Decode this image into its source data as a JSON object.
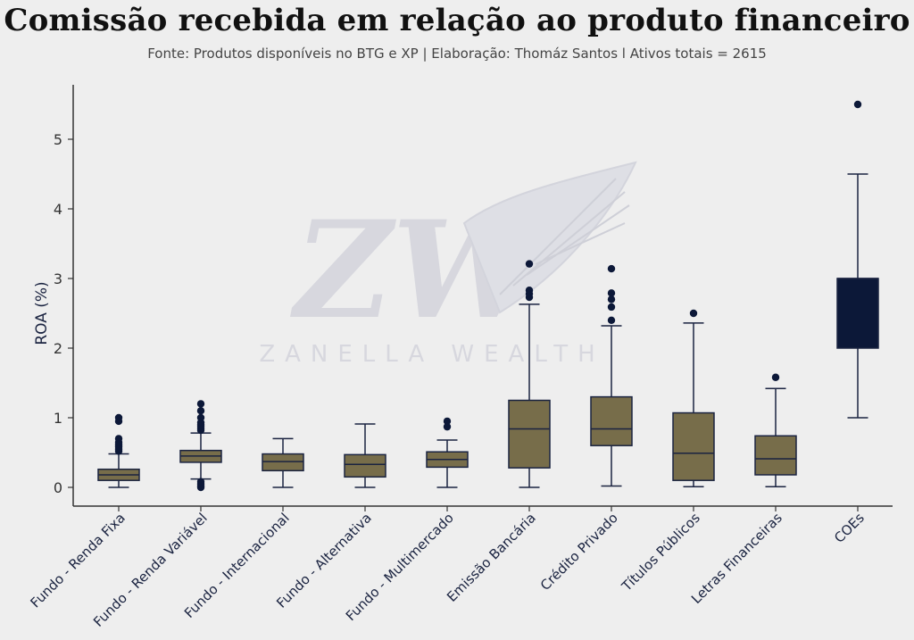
{
  "colors": {
    "background": "#eeeeee",
    "box_fill": "#776d4a",
    "box_edge": "#1a2340",
    "highlight_fill": "#0c1838",
    "outlier": "#0c1838",
    "axis": "#333333",
    "watermark": "#d3d4dc"
  },
  "watermark": {
    "logo_letters": "ZW",
    "text": "ZANELLA WEALTH"
  },
  "chart_data": {
    "type": "box",
    "title": "Comissão recebida em relação ao produto financeiro",
    "subtitle": "Fonte: Produtos disponíveis no BTG e XP | Elaboração: Thomáz Santos l Ativos totais = 2615",
    "xlabel": "",
    "ylabel": "ROA (%)",
    "ylim": [
      -0.3,
      5.8
    ],
    "yticks": [
      0,
      1,
      2,
      3,
      4,
      5
    ],
    "grid": false,
    "legend": "none",
    "categories": [
      "Fundo - Renda Fixa",
      "Fundo - Renda Variável",
      "Fundo - Internacional",
      "Fundo - Alternativa",
      "Fundo - Multimercado",
      "Emissão Bancária",
      "Crédito Privado",
      "Títulos Públicos",
      "Letras Financeiras",
      "COEs"
    ],
    "boxes": [
      {
        "whisker_low": 0.0,
        "q1": 0.1,
        "median": 0.18,
        "q3": 0.26,
        "whisker_high": 0.48,
        "outliers": [
          0.52,
          0.55,
          0.58,
          0.6,
          0.62,
          0.65,
          0.7,
          0.95,
          1.0
        ]
      },
      {
        "whisker_low": 0.12,
        "q1": 0.36,
        "median": 0.45,
        "q3": 0.53,
        "whisker_high": 0.78,
        "outliers": [
          0.0,
          0.02,
          0.05,
          0.08,
          0.82,
          0.85,
          0.88,
          0.9,
          0.93,
          1.0,
          1.1,
          1.2
        ]
      },
      {
        "whisker_low": 0.0,
        "q1": 0.24,
        "median": 0.37,
        "q3": 0.48,
        "whisker_high": 0.7,
        "outliers": []
      },
      {
        "whisker_low": 0.0,
        "q1": 0.15,
        "median": 0.33,
        "q3": 0.47,
        "whisker_high": 0.91,
        "outliers": []
      },
      {
        "whisker_low": 0.0,
        "q1": 0.29,
        "median": 0.4,
        "q3": 0.51,
        "whisker_high": 0.68,
        "outliers": [
          0.87,
          0.95
        ]
      },
      {
        "whisker_low": 0.0,
        "q1": 0.28,
        "median": 0.84,
        "q3": 1.25,
        "whisker_high": 2.63,
        "outliers": [
          2.73,
          2.78,
          2.83,
          3.21
        ]
      },
      {
        "whisker_low": 0.02,
        "q1": 0.6,
        "median": 0.84,
        "q3": 1.3,
        "whisker_high": 2.32,
        "outliers": [
          2.4,
          2.59,
          2.7,
          2.79,
          3.14
        ]
      },
      {
        "whisker_low": 0.01,
        "q1": 0.1,
        "median": 0.49,
        "q3": 1.07,
        "whisker_high": 2.36,
        "outliers": [
          2.5
        ]
      },
      {
        "whisker_low": 0.01,
        "q1": 0.18,
        "median": 0.41,
        "q3": 0.74,
        "whisker_high": 1.42,
        "outliers": [
          1.58
        ]
      },
      {
        "whisker_low": 1.0,
        "q1": 2.0,
        "median": 3.0,
        "q3": 3.0,
        "whisker_high": 4.5,
        "outliers": [
          5.5
        ],
        "highlight": true
      }
    ]
  }
}
